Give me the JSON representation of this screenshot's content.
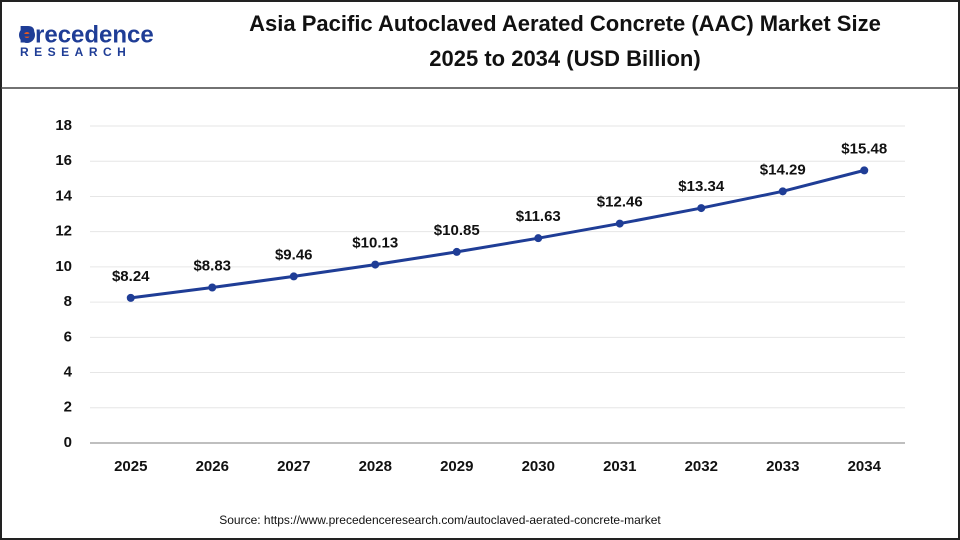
{
  "logo": {
    "name": "Precedence",
    "tagline": "RESEARCH"
  },
  "chart_data": {
    "type": "line",
    "title": [
      "Asia Pacific Autoclaved Aerated Concrete (AAC) Market Size",
      "2025 to 2034 (USD Billion)"
    ],
    "categories": [
      "2025",
      "2026",
      "2027",
      "2028",
      "2029",
      "2030",
      "2031",
      "2032",
      "2033",
      "2034"
    ],
    "values": [
      8.24,
      8.83,
      9.46,
      10.13,
      10.85,
      11.63,
      12.46,
      13.34,
      14.29,
      15.48
    ],
    "value_labels": [
      "$8.24",
      "$8.83",
      "$9.46",
      "$10.13",
      "$10.85",
      "$11.63",
      "$12.46",
      "$13.34",
      "$14.29",
      "$15.48"
    ],
    "color": "#1f3d96",
    "ylim": [
      0,
      18
    ],
    "yticks": [
      0,
      2,
      4,
      6,
      8,
      10,
      12,
      14,
      16,
      18
    ],
    "grid": true,
    "source": "Source: https://www.precedenceresearch.com/autoclaved-aerated-concrete-market"
  }
}
